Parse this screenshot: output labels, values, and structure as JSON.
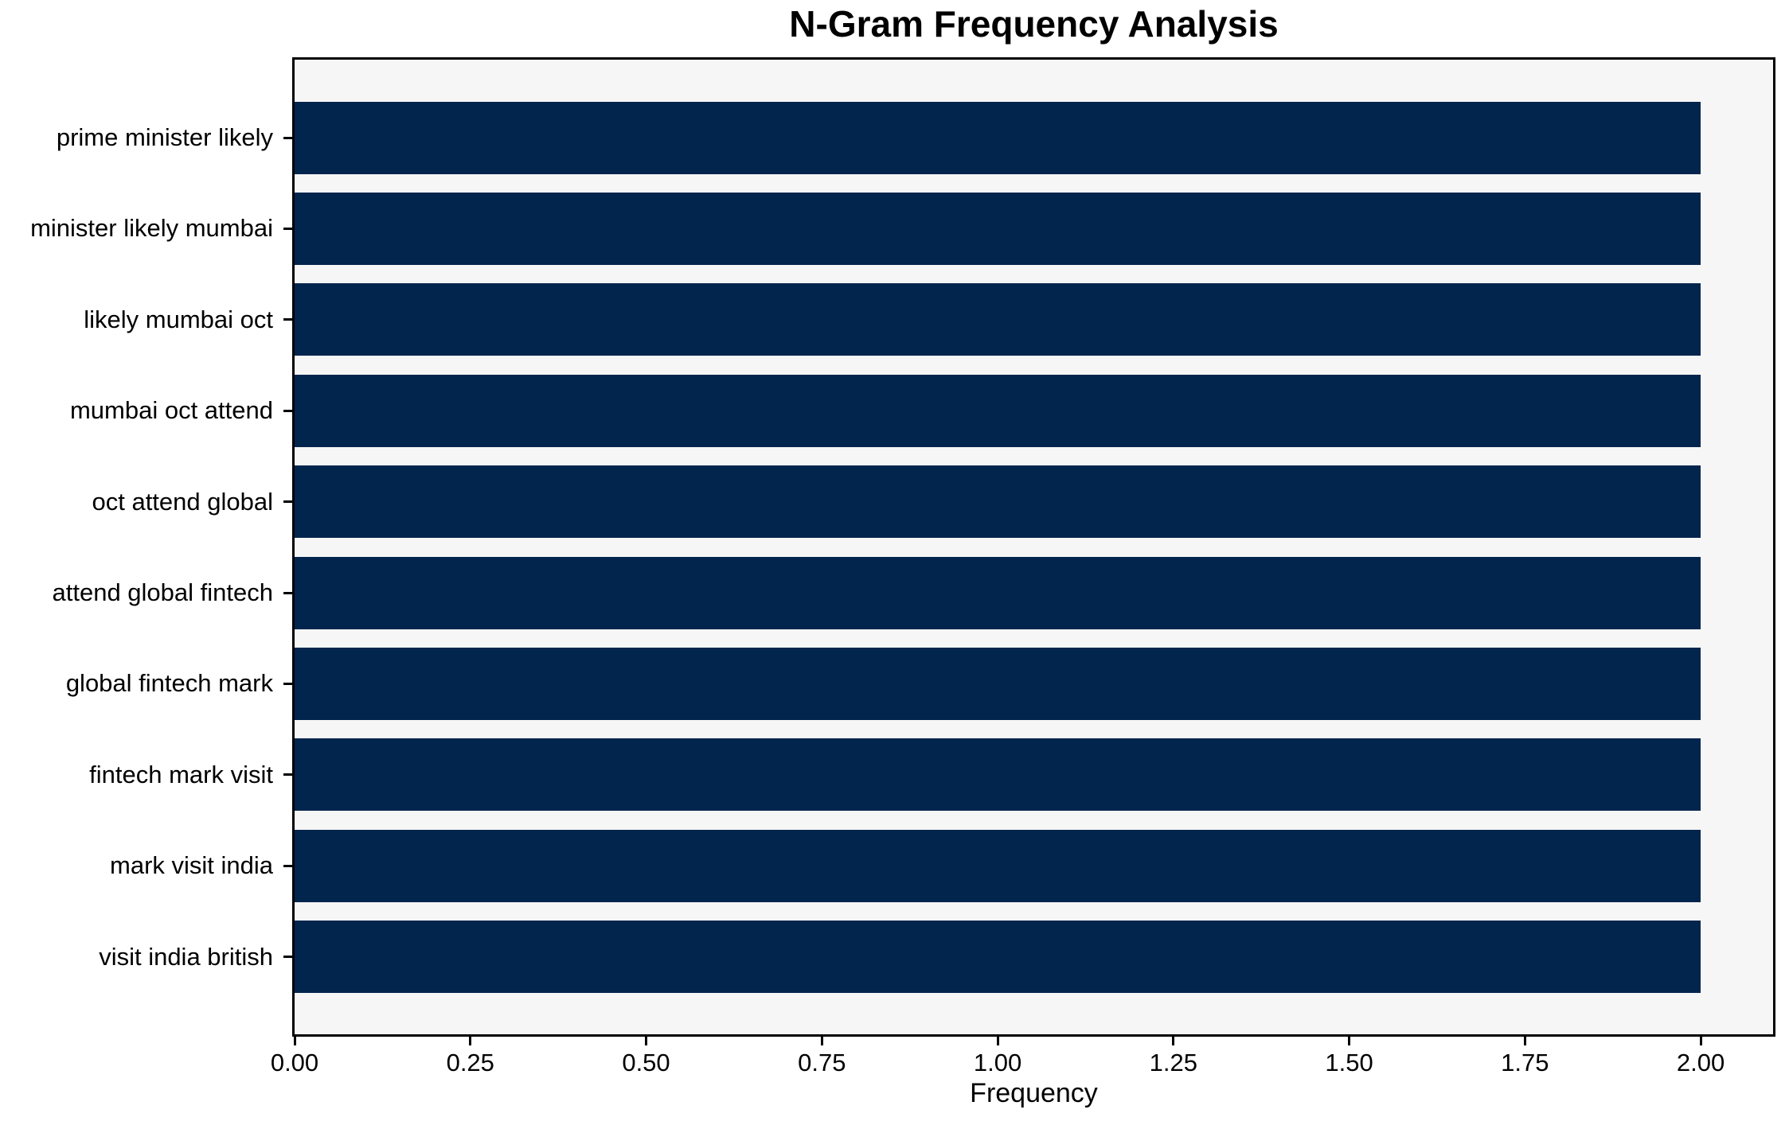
{
  "chart_data": {
    "type": "bar",
    "orientation": "horizontal",
    "title": "N-Gram Frequency Analysis",
    "xlabel": "Frequency",
    "ylabel": "",
    "categories": [
      "prime minister likely",
      "minister likely mumbai",
      "likely mumbai oct",
      "mumbai oct attend",
      "oct attend global",
      "attend global fintech",
      "global fintech mark",
      "fintech mark visit",
      "mark visit india",
      "visit india british"
    ],
    "values": [
      2,
      2,
      2,
      2,
      2,
      2,
      2,
      2,
      2,
      2
    ],
    "xlim": [
      0,
      2.103
    ],
    "xticks": [
      0.0,
      0.25,
      0.5,
      0.75,
      1.0,
      1.25,
      1.5,
      1.75,
      2.0
    ],
    "xtick_labels": [
      "0.00",
      "0.25",
      "0.50",
      "0.75",
      "1.00",
      "1.25",
      "1.50",
      "1.75",
      "2.00"
    ],
    "grid": false,
    "legend": null,
    "bar_color": "#02254d",
    "plot_bg_color": "#f6f6f6",
    "spine_color": "#000000",
    "text_color": "#000000"
  }
}
